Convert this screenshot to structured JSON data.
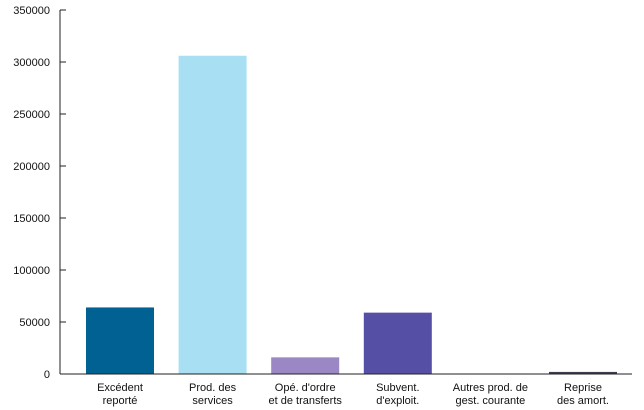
{
  "chart_data": {
    "type": "bar",
    "title": "",
    "xlabel": "",
    "ylabel": "",
    "ylim": [
      0,
      350000
    ],
    "yticks": [
      0,
      50000,
      100000,
      150000,
      200000,
      250000,
      300000,
      350000
    ],
    "grid": false,
    "legend": "none",
    "categories": [
      [
        "Excédent",
        "reporté"
      ],
      [
        "Prod. des",
        "services"
      ],
      [
        "Opé. d'ordre",
        "et de transferts"
      ],
      [
        "Subvent.",
        "d'exploit."
      ],
      [
        "Autres prod. de",
        "gest. courante"
      ],
      [
        "Reprise",
        "des amort."
      ]
    ],
    "values": [
      64000,
      306000,
      16000,
      59000,
      500,
      2000
    ],
    "colors": [
      "#006192",
      "#a9dff2",
      "#9b87c4",
      "#5550a6",
      "#b7aedb",
      "#3d3d50"
    ]
  }
}
